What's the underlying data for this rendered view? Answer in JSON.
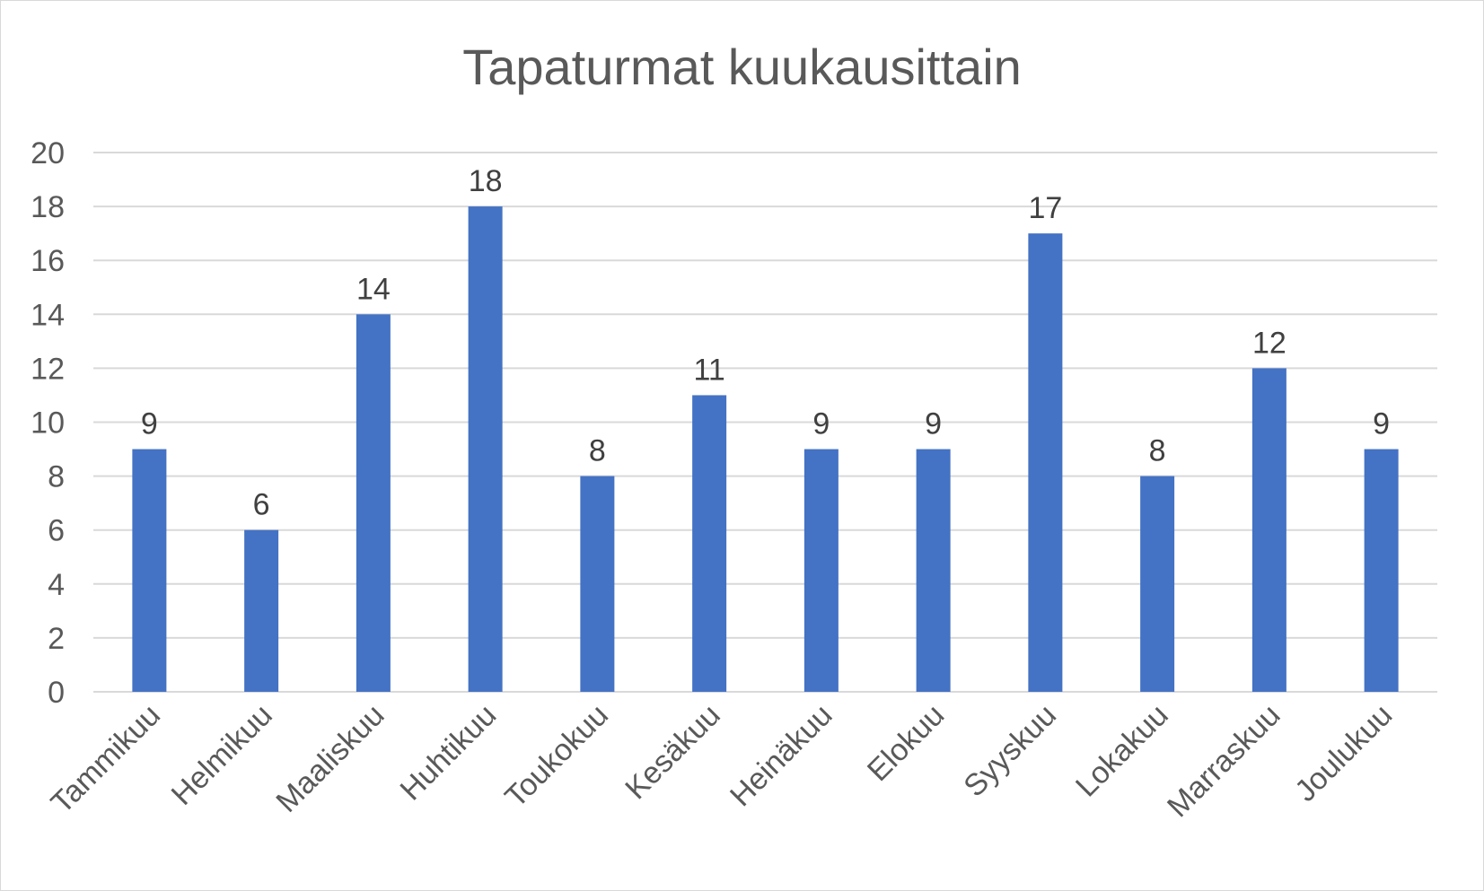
{
  "chart_data": {
    "type": "bar",
    "title": "Tapaturmat kuukausittain",
    "xlabel": "",
    "ylabel": "",
    "categories": [
      "Tammikuu",
      "Helmikuu",
      "Maaliskuu",
      "Huhtikuu",
      "Toukokuu",
      "Kesäkuu",
      "Heinäkuu",
      "Elokuu",
      "Syyskuu",
      "Lokakuu",
      "Marraskuu",
      "Joulukuu"
    ],
    "values": [
      9,
      6,
      14,
      18,
      8,
      11,
      9,
      9,
      17,
      8,
      12,
      9
    ],
    "ylim": [
      0,
      20
    ],
    "yticks": [
      "0",
      "2",
      "4",
      "6",
      "8",
      "10",
      "12",
      "14",
      "16",
      "18",
      "20"
    ],
    "grid": true,
    "legend": "none",
    "data_labels": true,
    "bar_color": "#4472c4",
    "grid_color": "#d9d9d9"
  }
}
